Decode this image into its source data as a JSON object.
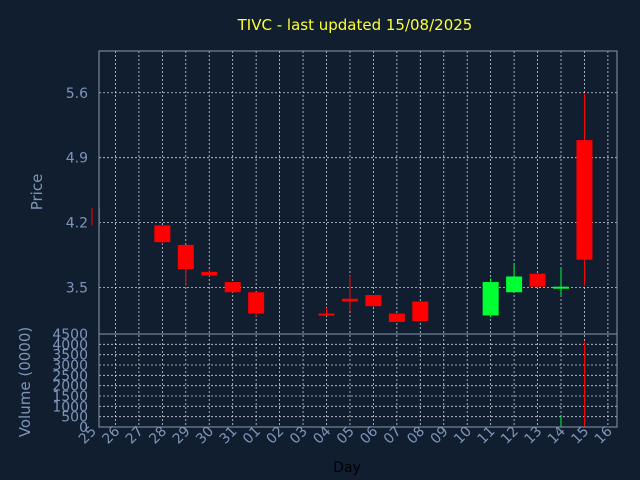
{
  "title": "TIVC - last updated 15/08/2025",
  "colors": {
    "background": "#101e30",
    "title": "#ffff33",
    "axis_text": "#7f95b8",
    "xlabel": "#000000",
    "frame": "#8a98b0",
    "grid": "#c8d0dc",
    "down": "#ff0000",
    "up": "#00ff33"
  },
  "chart_data": [
    {
      "type": "candlestick",
      "ylabel": "Price",
      "ylim": [
        3.0,
        6.05
      ],
      "yticks": [
        "3.5",
        "4.2",
        "4.9",
        "5.6"
      ],
      "xlabel": "Day",
      "xticks": [
        "25",
        "26",
        "27",
        "28",
        "29",
        "30",
        "31",
        "01",
        "02",
        "03",
        "04",
        "05",
        "06",
        "07",
        "08",
        "09",
        "10",
        "11",
        "12",
        "13",
        "14",
        "15",
        "16"
      ],
      "grid": true,
      "candles": [
        {
          "day": "25",
          "open": 4.36,
          "high": 4.36,
          "low": 4.17,
          "close": 4.17
        },
        {
          "day": "28",
          "open": 4.17,
          "high": 4.17,
          "low": 3.97,
          "close": 3.99
        },
        {
          "day": "29",
          "open": 3.96,
          "high": 3.96,
          "low": 3.52,
          "close": 3.7
        },
        {
          "day": "30",
          "open": 3.67,
          "high": 3.69,
          "low": 3.62,
          "close": 3.63
        },
        {
          "day": "31",
          "open": 3.56,
          "high": 3.56,
          "low": 3.45,
          "close": 3.45
        },
        {
          "day": "01",
          "open": 3.45,
          "high": 3.45,
          "low": 3.19,
          "close": 3.22
        },
        {
          "day": "04",
          "open": 3.22,
          "high": 3.28,
          "low": 3.21,
          "close": 3.21
        },
        {
          "day": "05",
          "open": 3.38,
          "high": 3.63,
          "low": 3.25,
          "close": 3.35
        },
        {
          "day": "06",
          "open": 3.42,
          "high": 3.42,
          "low": 3.29,
          "close": 3.3
        },
        {
          "day": "07",
          "open": 3.22,
          "high": 3.22,
          "low": 3.13,
          "close": 3.13
        },
        {
          "day": "08",
          "open": 3.35,
          "high": 3.35,
          "low": 3.14,
          "close": 3.14
        },
        {
          "day": "11",
          "open": 3.2,
          "high": 3.6,
          "low": 3.18,
          "close": 3.56
        },
        {
          "day": "12",
          "open": 3.45,
          "high": 3.75,
          "low": 3.45,
          "close": 3.62
        },
        {
          "day": "13",
          "open": 3.65,
          "high": 3.65,
          "low": 3.5,
          "close": 3.51
        },
        {
          "day": "14",
          "open": 3.5,
          "high": 3.72,
          "low": 3.41,
          "close": 3.51
        },
        {
          "day": "15",
          "open": 5.09,
          "high": 5.59,
          "low": 3.52,
          "close": 3.8
        }
      ]
    },
    {
      "type": "bar",
      "ylabel": "Volume (0000)",
      "ylim": [
        0,
        4500
      ],
      "yticks": [
        "0",
        "500",
        "1000",
        "1500",
        "2000",
        "2500",
        "3000",
        "3500",
        "4000",
        "4500"
      ],
      "grid": true,
      "volumes": [
        {
          "day": "14",
          "value": 550,
          "direction": "up"
        },
        {
          "day": "15",
          "value": 4130,
          "direction": "down"
        }
      ]
    }
  ]
}
